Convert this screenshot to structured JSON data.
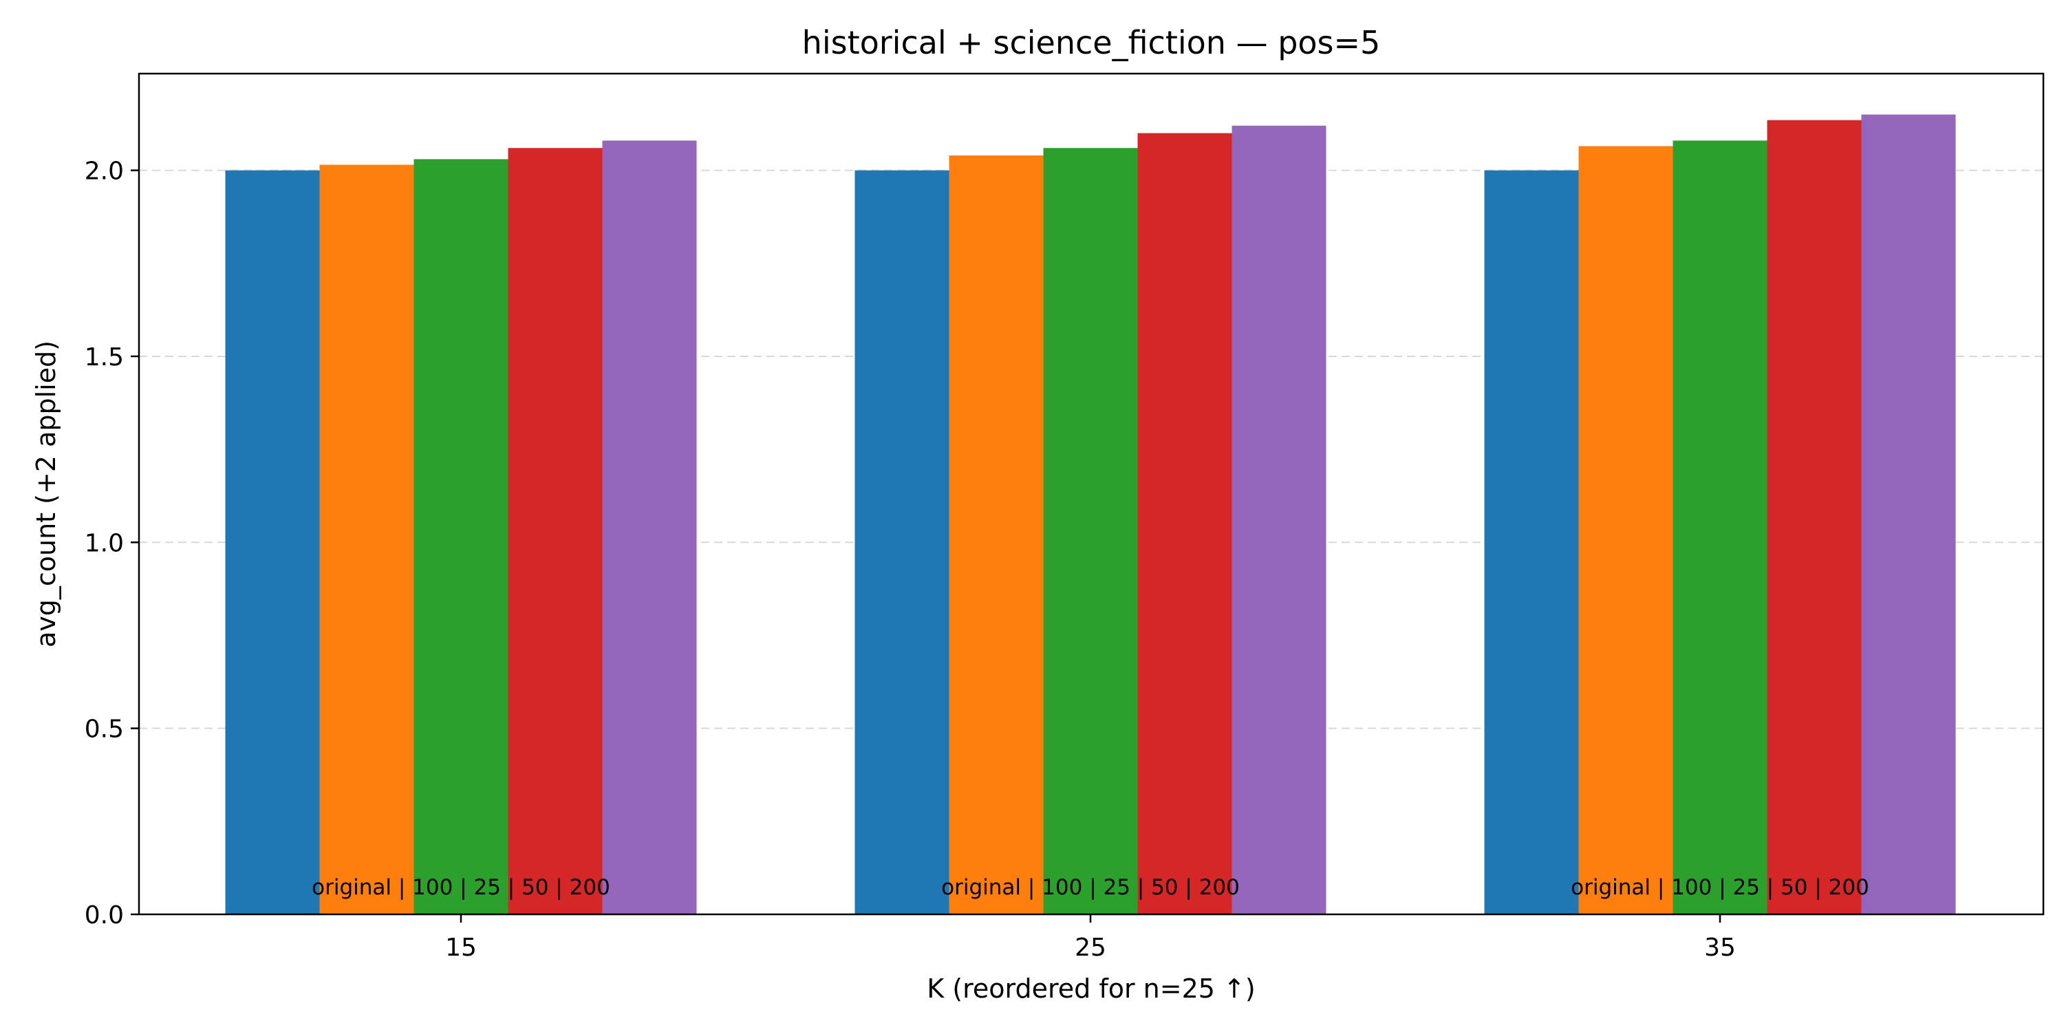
{
  "chart_data": {
    "type": "bar",
    "title": "historical + science_fiction — pos=5",
    "xlabel": "K (reordered for n=25 ↑)",
    "ylabel": "avg_count (+2 applied)",
    "categories": [
      "15",
      "25",
      "35"
    ],
    "ylim": [
      0,
      2.26
    ],
    "yticks": [
      "0.0",
      "0.5",
      "1.0",
      "1.5",
      "2.0"
    ],
    "grid": "y-dashed",
    "legend": "none",
    "group_annotation": "original | 100 | 25 | 50 | 200",
    "series": [
      {
        "color": "#1f77b4",
        "values": [
          2.0,
          2.0,
          2.0
        ]
      },
      {
        "color": "#ff7f0e",
        "values": [
          2.015,
          2.04,
          2.065
        ]
      },
      {
        "color": "#2ca02c",
        "values": [
          2.03,
          2.06,
          2.08
        ]
      },
      {
        "color": "#d62728",
        "values": [
          2.06,
          2.1,
          2.135
        ]
      },
      {
        "color": "#9467bd",
        "values": [
          2.08,
          2.12,
          2.15
        ]
      }
    ]
  }
}
